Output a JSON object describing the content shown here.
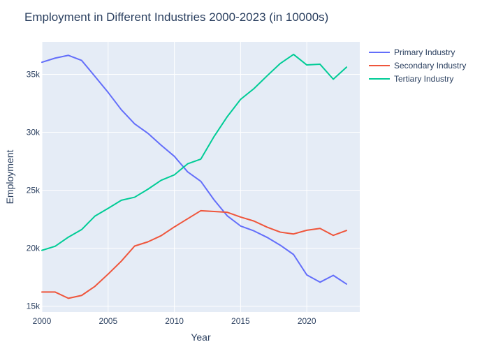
{
  "chart_data": {
    "type": "line",
    "title": "Employment in Different Industries 2000-2023 (in 10000s)",
    "xlabel": "Year",
    "ylabel": "Employment",
    "xlim": [
      2000,
      2024
    ],
    "ylim": [
      14500,
      37800
    ],
    "x_ticks": [
      2000,
      2005,
      2010,
      2015,
      2020
    ],
    "y_ticks": [
      {
        "value": 15000,
        "label": "15k"
      },
      {
        "value": 20000,
        "label": "20k"
      },
      {
        "value": 25000,
        "label": "25k"
      },
      {
        "value": 30000,
        "label": "30k"
      },
      {
        "value": 35000,
        "label": "35k"
      }
    ],
    "grid": true,
    "legend_position": "top-right",
    "x": [
      2000,
      2001,
      2002,
      2003,
      2004,
      2005,
      2006,
      2007,
      2008,
      2009,
      2010,
      2011,
      2012,
      2013,
      2014,
      2015,
      2016,
      2017,
      2018,
      2019,
      2020,
      2021,
      2022,
      2023
    ],
    "series": [
      {
        "name": "Primary Industry",
        "color": "#636efa",
        "values": [
          36040,
          36400,
          36640,
          36200,
          34830,
          33440,
          31940,
          30730,
          29920,
          28890,
          27930,
          26590,
          25770,
          24170,
          22790,
          21920,
          21500,
          20940,
          20260,
          19460,
          17700,
          17070,
          17660,
          16910
        ]
      },
      {
        "name": "Secondary Industry",
        "color": "#ef553b",
        "values": [
          16220,
          16220,
          15680,
          15930,
          16710,
          17770,
          18890,
          20190,
          20550,
          21080,
          21840,
          22540,
          23240,
          23170,
          23100,
          22690,
          22350,
          21820,
          21390,
          21230,
          21550,
          21710,
          21110,
          21530
        ]
      },
      {
        "name": "Tertiary Industry",
        "color": "#00cc96",
        "values": [
          19820,
          20170,
          20960,
          21610,
          22770,
          23440,
          24140,
          24400,
          25090,
          25860,
          26330,
          27280,
          27690,
          29640,
          31360,
          32840,
          33760,
          34870,
          35940,
          36720,
          35810,
          35870,
          34580,
          35620
        ]
      }
    ]
  }
}
